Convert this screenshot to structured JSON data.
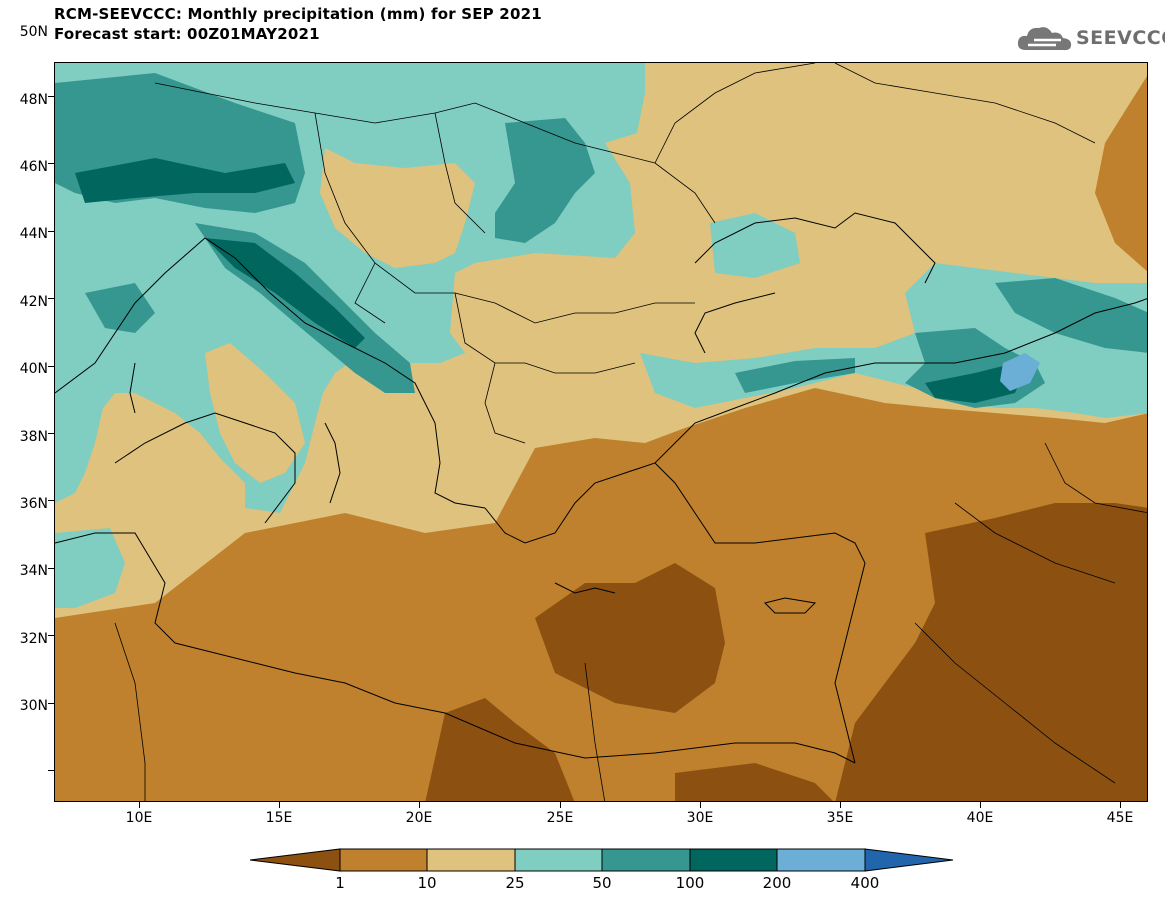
{
  "header": {
    "title_line1": "RCM-SEEVCCC: Monthly precipitation (mm) for SEP 2021",
    "title_line2": "Forecast start: 00Z01MAY2021"
  },
  "logo": {
    "text": "SEEVCCC",
    "icon": "cloud-icon"
  },
  "map": {
    "lat_range": [
      29,
      51
    ],
    "lon_range": [
      7,
      46
    ],
    "lat_ticks": [
      "50N",
      "48N",
      "46N",
      "44N",
      "42N",
      "40N",
      "38N",
      "36N",
      "34N",
      "32N",
      "30N"
    ],
    "lon_ticks": [
      "10E",
      "15E",
      "20E",
      "25E",
      "30E",
      "35E",
      "40E",
      "45E"
    ]
  },
  "colorbar": {
    "labels": [
      "1",
      "10",
      "25",
      "50",
      "100",
      "200",
      "400"
    ],
    "colors": [
      "#8c5111",
      "#bf812d",
      "#dfc27d",
      "#80cdc1",
      "#35978f",
      "#01665e",
      "#6baed6",
      "#2166ac"
    ]
  }
}
